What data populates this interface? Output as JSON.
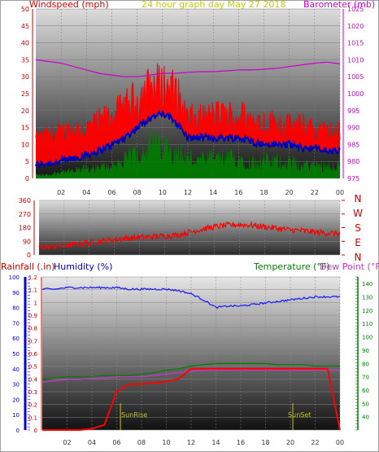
{
  "colors": {
    "wind": "#ff0000",
    "gust_band": "#ff0000",
    "avg_wind": "#0000bb",
    "min_wind": "#008000",
    "barometer": "#cc00cc",
    "wind_dir": "#ff0000",
    "rain": "#ff0000",
    "humidity": "#2222ff",
    "temperature": "#008000",
    "dew_point": "#cc33cc",
    "sun": "#c8c800",
    "axis_left": "#cc0000",
    "axis_right": "#cc00cc",
    "axis_humidity": "#0000cc"
  },
  "header": {
    "left_title": "Windspeed (mph)",
    "center_title": "24 hour graph day   May 27 2018",
    "right_title": "Barometer (mb)"
  },
  "bottom_header": {
    "rain_label": "Rainfall (.in)",
    "humidity_label": "Humidity (%)",
    "temp_label": "Temperature (°F)",
    "dew_label": "Dew Point (°F)"
  },
  "compass": [
    "N",
    "W",
    "S",
    "E",
    "N"
  ],
  "annotations": {
    "sunrise": "SunRise",
    "sunset": "SunSet"
  },
  "chart_data": [
    {
      "type": "line",
      "panel": "wind_barometer",
      "x_ticks": [
        "02",
        "04",
        "06",
        "08",
        "10",
        "12",
        "14",
        "16",
        "18",
        "20",
        "22",
        "00"
      ],
      "y_left": {
        "label": "Windspeed (mph)",
        "ticks": [
          "0",
          "5",
          "10",
          "15",
          "20",
          "25",
          "30",
          "35",
          "40",
          "45",
          "50"
        ],
        "range": [
          0,
          50
        ]
      },
      "y_right": {
        "label": "Barometer (mb)",
        "ticks": [
          "975",
          "980",
          "985",
          "990",
          "995",
          "1000",
          "1005",
          "1010",
          "1015",
          "1020",
          "1025"
        ],
        "range": [
          975,
          1025
        ]
      },
      "x": [
        0,
        1,
        2,
        3,
        4,
        5,
        6,
        7,
        8,
        9,
        10,
        11,
        12,
        13,
        14,
        15,
        16,
        17,
        18,
        19,
        20,
        21,
        22,
        23,
        24
      ],
      "series": [
        {
          "name": "gust",
          "values": [
            11,
            12,
            13,
            14,
            14,
            16,
            18,
            20,
            23,
            26,
            27,
            25,
            17,
            17,
            18,
            18,
            18,
            17,
            16,
            16,
            15,
            15,
            14,
            13,
            13
          ]
        },
        {
          "name": "average",
          "values": [
            4,
            4.5,
            5,
            6,
            7,
            8,
            10,
            12,
            15,
            18,
            19,
            17,
            12,
            12,
            12,
            12,
            12,
            11,
            10,
            10,
            10,
            9,
            9,
            8,
            8
          ]
        },
        {
          "name": "minimum",
          "values": [
            1,
            1,
            2,
            2,
            3,
            3,
            4,
            5,
            8,
            10,
            10,
            9,
            6,
            5,
            6,
            6,
            6,
            5,
            5,
            5,
            5,
            4,
            4,
            4,
            4
          ]
        },
        {
          "name": "barometer",
          "values": [
            1010,
            1009.5,
            1009,
            1008,
            1007,
            1006,
            1005.5,
            1005,
            1005,
            1005.5,
            1006,
            1006,
            1006.3,
            1006.5,
            1006.5,
            1006.7,
            1007,
            1007,
            1007.2,
            1007.5,
            1008,
            1008.5,
            1009,
            1009.3,
            1008.8
          ]
        }
      ]
    },
    {
      "type": "line",
      "panel": "wind_direction",
      "y_left": {
        "ticks": [
          "0",
          "90",
          "180",
          "270",
          "360"
        ],
        "range": [
          0,
          360
        ]
      },
      "y_right": {
        "ticks": [
          "N",
          "E",
          "S",
          "W",
          "N"
        ]
      },
      "x": [
        0,
        1,
        2,
        3,
        4,
        5,
        6,
        7,
        8,
        9,
        10,
        11,
        12,
        13,
        14,
        15,
        16,
        17,
        18,
        19,
        20,
        21,
        22,
        23,
        24
      ],
      "series": [
        {
          "name": "wind_direction",
          "values": [
            50,
            55,
            60,
            70,
            80,
            90,
            100,
            110,
            115,
            120,
            125,
            130,
            150,
            170,
            185,
            195,
            200,
            195,
            185,
            175,
            165,
            160,
            150,
            145,
            140
          ]
        }
      ]
    },
    {
      "type": "line",
      "panel": "rain_humidity_temperature",
      "x_ticks": [
        "02",
        "04",
        "06",
        "08",
        "10",
        "12",
        "14",
        "16",
        "18",
        "20",
        "22",
        "00"
      ],
      "y_rain": {
        "label": "Rainfall (.in)",
        "ticks": [
          "0",
          "0.1",
          "0.2",
          "0.3",
          "0.4",
          "0.5",
          "0.6",
          "0.7",
          "0.8",
          "0.9",
          "1",
          "1.1",
          "1.2"
        ],
        "range": [
          0,
          1.2
        ]
      },
      "y_humidity": {
        "label": "Humidity (%)",
        "ticks": [
          "0",
          "10",
          "20",
          "30",
          "40",
          "50",
          "60",
          "70",
          "80",
          "90",
          "100"
        ],
        "range": [
          0,
          100
        ]
      },
      "y_temp": {
        "label": "Temperature (°F)",
        "ticks": [
          "40",
          "50",
          "60",
          "70",
          "80",
          "90",
          "100",
          "110",
          "120",
          "130",
          "140"
        ],
        "range": [
          30,
          145
        ]
      },
      "x": [
        0,
        1,
        2,
        3,
        4,
        5,
        6,
        7,
        8,
        9,
        10,
        11,
        12,
        13,
        14,
        15,
        16,
        17,
        18,
        19,
        20,
        21,
        22,
        23,
        24
      ],
      "series": [
        {
          "name": "rainfall",
          "values": [
            0,
            0,
            0,
            0,
            0.01,
            0.04,
            0.3,
            0.36,
            0.36,
            0.37,
            0.38,
            0.4,
            0.48,
            0.48,
            0.48,
            0.48,
            0.48,
            0.48,
            0.48,
            0.48,
            0.48,
            0.48,
            0.48,
            0.48,
            0.0
          ]
        },
        {
          "name": "humidity",
          "values": [
            92,
            92,
            93,
            93,
            93,
            93,
            93,
            92,
            92,
            92,
            92,
            91,
            89,
            85,
            80,
            81,
            81,
            82,
            83,
            84,
            85,
            86,
            87,
            87,
            87
          ]
        },
        {
          "name": "temperature",
          "values": [
            68,
            69,
            70,
            70,
            70,
            71,
            71,
            71,
            72,
            73,
            75,
            76,
            78,
            79,
            80,
            80,
            80,
            80,
            80,
            79,
            79,
            79,
            78,
            78,
            78
          ]
        },
        {
          "name": "dew_point",
          "values": [
            66,
            67,
            68,
            68,
            69,
            69,
            70,
            70,
            70,
            71,
            72,
            73,
            74,
            75,
            75,
            75,
            75,
            75,
            75,
            75,
            75,
            75,
            75,
            75,
            75
          ]
        }
      ],
      "sunrise_hour": 6.3,
      "sunset_hour": 20.2
    }
  ]
}
